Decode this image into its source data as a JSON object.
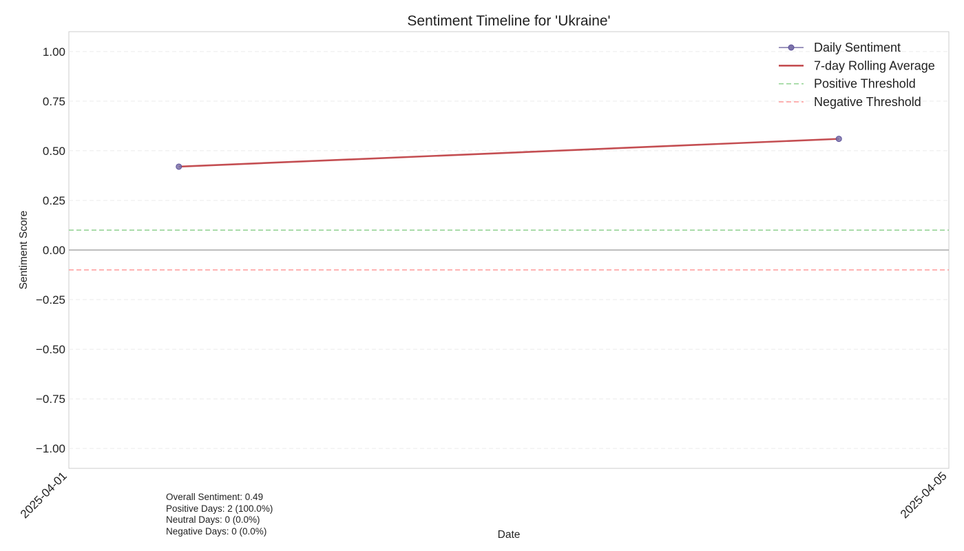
{
  "chart_data": {
    "type": "line",
    "title": "Sentiment Timeline for 'Ukraine'",
    "xlabel": "Date",
    "ylabel": "Sentiment Score",
    "x_ticks": [
      "2025-04-01",
      "2025-04-05"
    ],
    "xlim": [
      "2025-04-01",
      "2025-04-05"
    ],
    "ylim": [
      -1.1,
      1.1
    ],
    "y_ticks": [
      1.0,
      0.75,
      0.5,
      0.25,
      0.0,
      -0.25,
      -0.5,
      -0.75,
      -1.0
    ],
    "y_tick_labels": [
      "1.00",
      "0.75",
      "0.50",
      "0.25",
      "0.00",
      "−0.25",
      "−0.50",
      "−0.75",
      "−1.00"
    ],
    "grid": true,
    "legend_position": "top-right",
    "series": [
      {
        "name": "Daily Sentiment",
        "color": "#7b72a8",
        "marker": "circle",
        "x": [
          "2025-04-01 12:00",
          "2025-04-04 12:00"
        ],
        "values": [
          0.42,
          0.56
        ]
      },
      {
        "name": "7-day Rolling Average",
        "color": "#c44e52",
        "x": [
          "2025-04-01 12:00",
          "2025-04-04 12:00"
        ],
        "values": [
          0.42,
          0.56
        ]
      }
    ],
    "reference_lines": [
      {
        "name": "Positive Threshold",
        "y": 0.1,
        "color": "#8fd18f",
        "style": "dashed"
      },
      {
        "name": "Negative Threshold",
        "y": -0.1,
        "color": "#ff9a9a",
        "style": "dashed"
      },
      {
        "name": "",
        "y": 0.0,
        "color": "#a8a8a8",
        "style": "solid"
      }
    ]
  },
  "stats": {
    "overall": "Overall Sentiment: 0.49",
    "positive": "Positive Days: 2 (100.0%)",
    "neutral": "Neutral Days: 0 (0.0%)",
    "negative": "Negative Days: 0 (0.0%)"
  }
}
